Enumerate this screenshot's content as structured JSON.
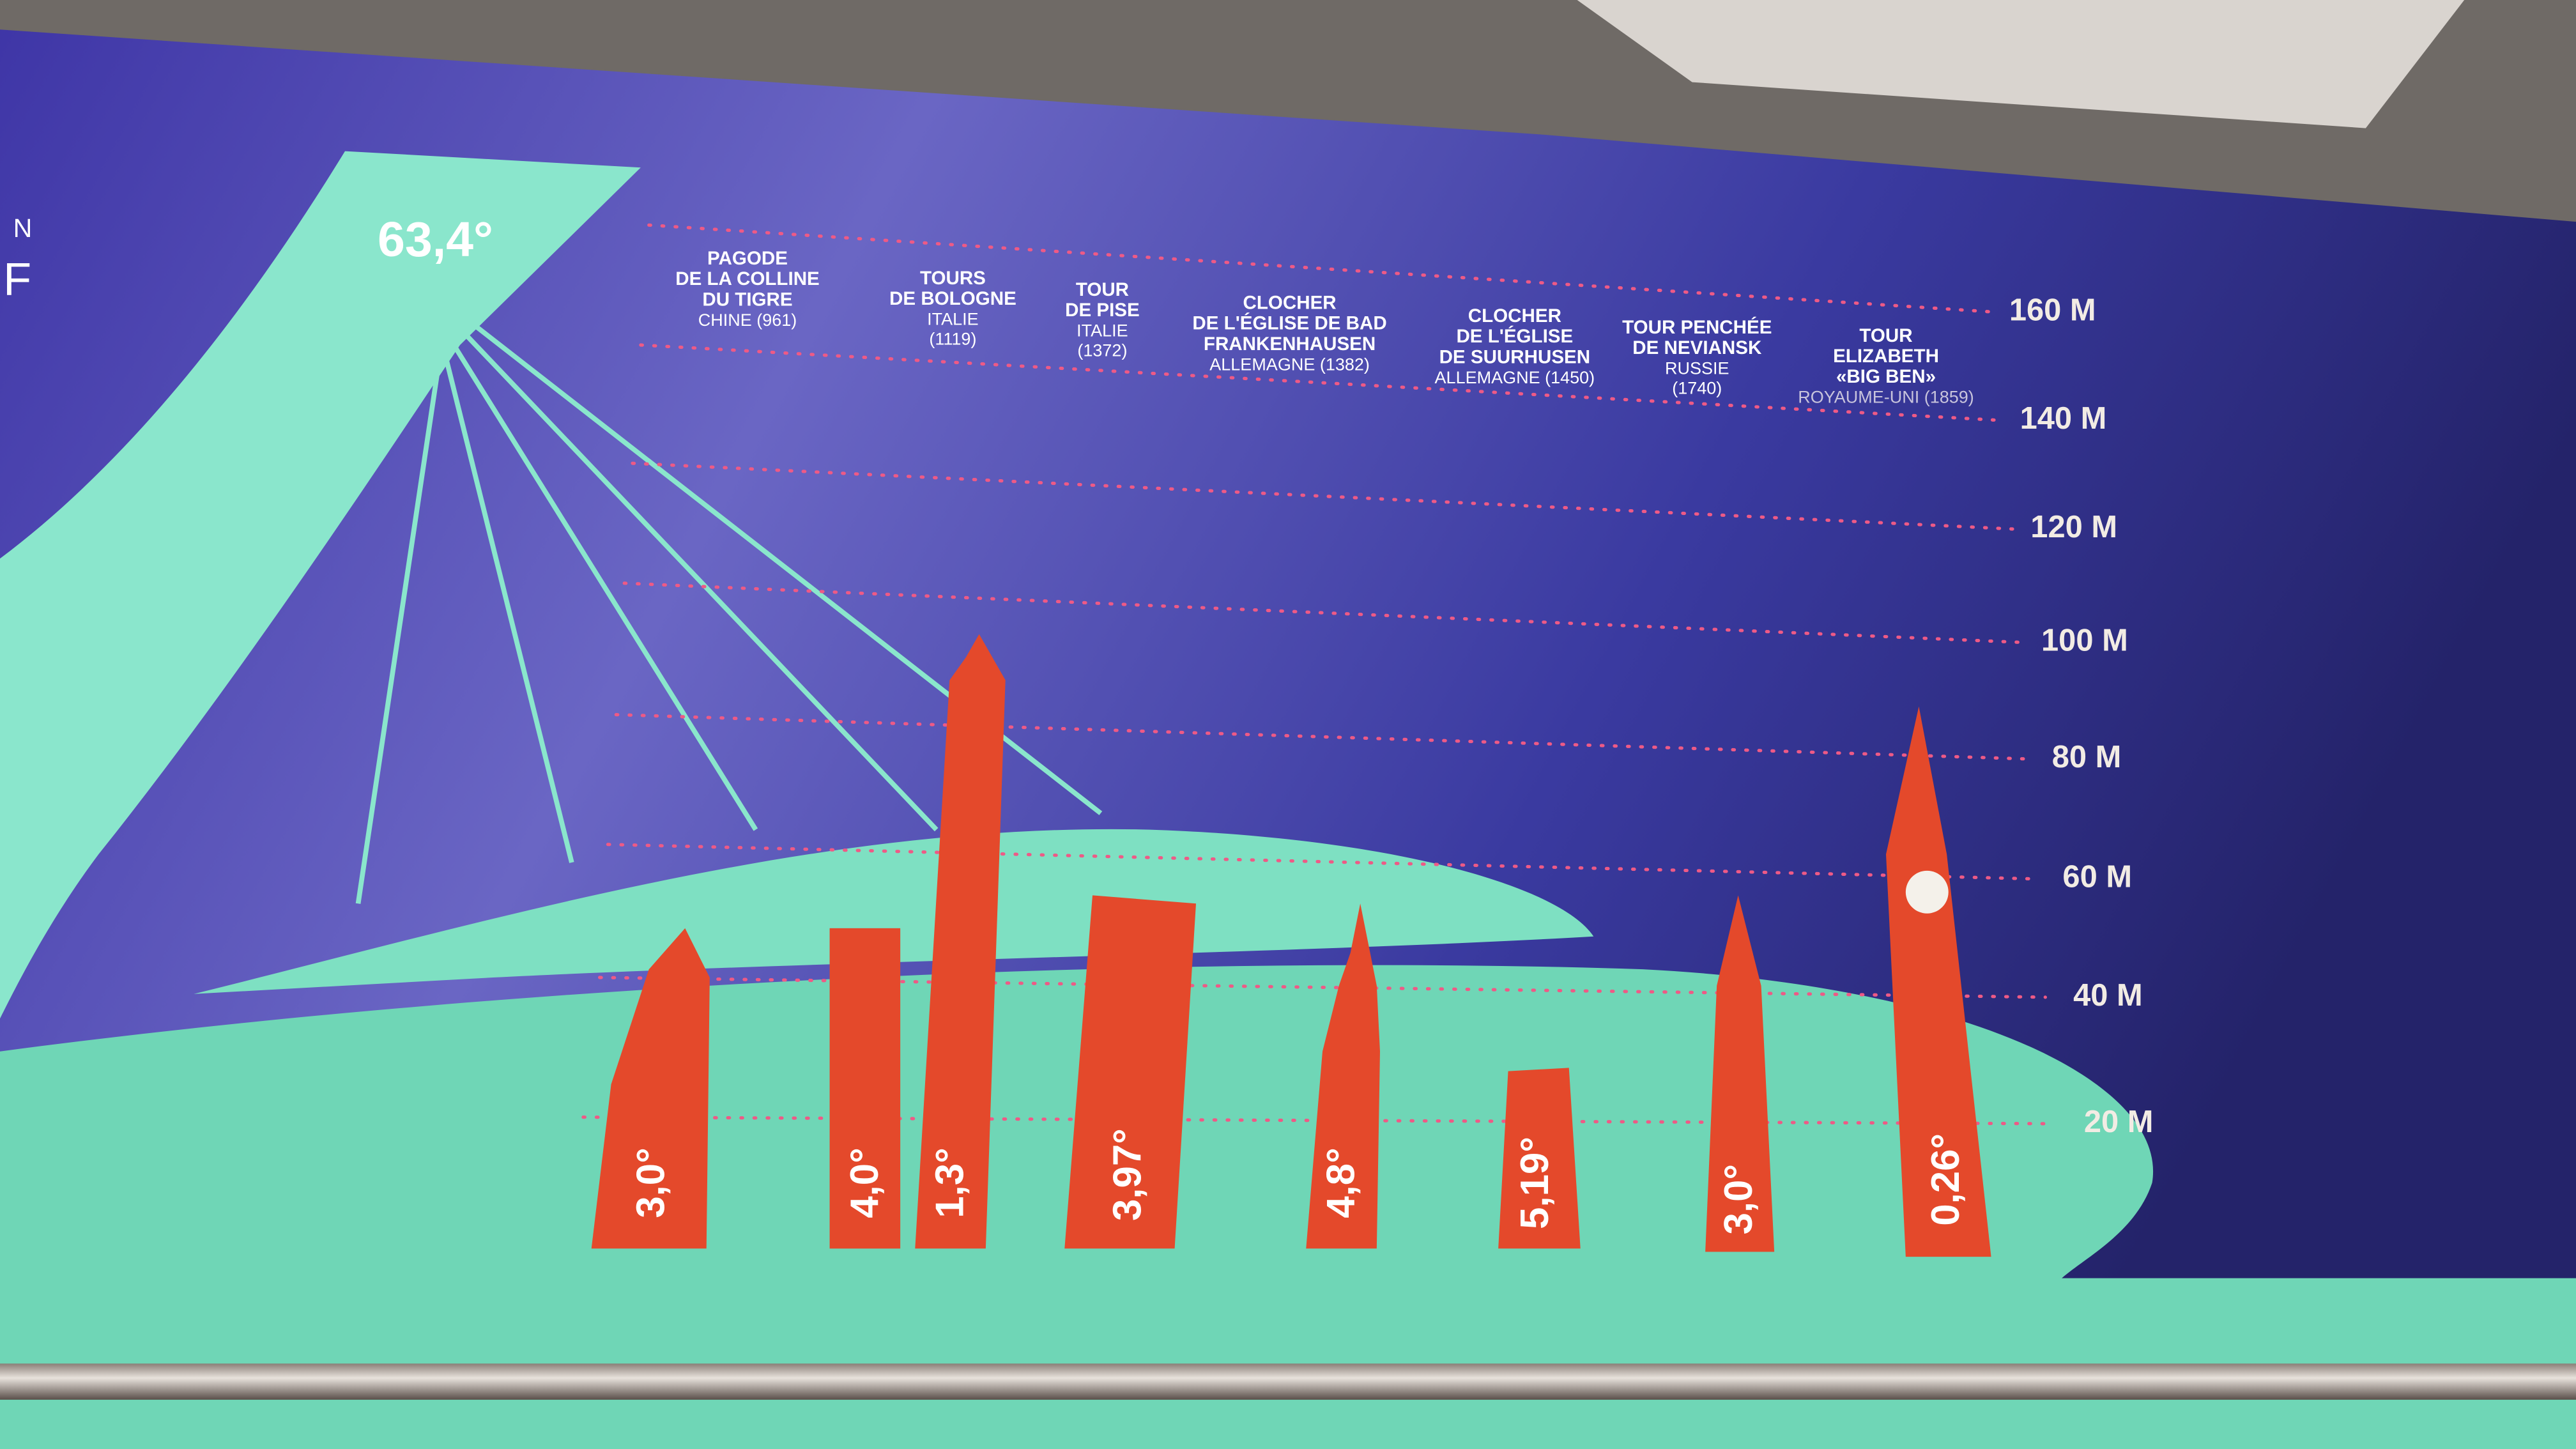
{
  "header": {
    "angle": "63,4°",
    "fragments": [
      "N",
      "F"
    ]
  },
  "scale": [
    "160 M",
    "140 M",
    "120 M",
    "100 M",
    "80 M",
    "60 M",
    "40 M",
    "20 M"
  ],
  "towers": [
    {
      "name": [
        "PAGODE",
        "DE LA COLLINE",
        "DU TIGRE"
      ],
      "details": [
        "CHINE (961)"
      ],
      "angles": [
        "3,0°"
      ]
    },
    {
      "name": [
        "TOURS",
        "DE BOLOGNE"
      ],
      "details": [
        "ITALIE",
        "(1119)"
      ],
      "angles": [
        "4,0°",
        "1,3°"
      ]
    },
    {
      "name": [
        "TOUR",
        "DE PISE"
      ],
      "details": [
        "ITALIE",
        "(1372)"
      ],
      "angles": [
        "3,97°"
      ]
    },
    {
      "name": [
        "CLOCHER",
        "DE L'ÉGLISE DE BAD",
        "FRANKENHAUSEN"
      ],
      "details": [
        "ALLEMAGNE (1382)"
      ],
      "angles": [
        "4,8°"
      ]
    },
    {
      "name": [
        "CLOCHER",
        "DE L'ÉGLISE",
        "DE SUURHUSEN"
      ],
      "details": [
        "ALLEMAGNE (1450)"
      ],
      "angles": [
        "5,19°"
      ]
    },
    {
      "name": [
        "TOUR PENCHÉE",
        "DE NEVIANSK"
      ],
      "details": [
        "RUSSIE",
        "(1740)"
      ],
      "angles": [
        "3,0°"
      ]
    },
    {
      "name": [
        "TOUR",
        "ELIZABETH",
        "«BIG BEN»"
      ],
      "details": [
        "ROYAUME-UNI (1859)"
      ],
      "angles": [
        "0,26°"
      ]
    }
  ]
}
